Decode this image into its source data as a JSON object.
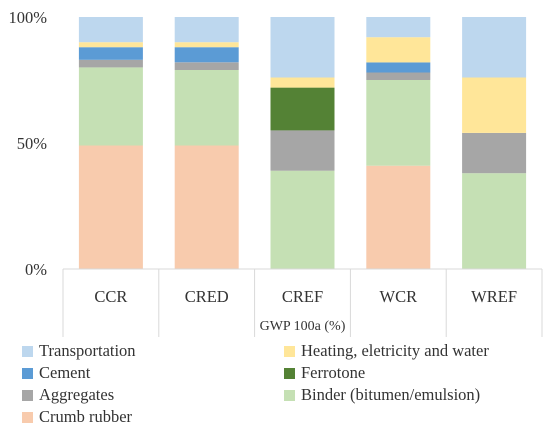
{
  "chart_data": {
    "type": "bar",
    "stacked": true,
    "categories": [
      "CCR",
      "CRED",
      "CREF",
      "WCR",
      "WREF"
    ],
    "xlabel": "GWP 100a (%)",
    "ylabel": "",
    "ylim": [
      0,
      100
    ],
    "yticks": [
      "0%",
      "50%",
      "100%"
    ],
    "ytick_values": [
      0,
      50,
      100
    ],
    "grid": false,
    "legend_position": "bottom",
    "series": [
      {
        "name": "Crumb rubber",
        "color": "#f8cbad",
        "values": [
          49,
          49,
          0,
          41,
          0
        ]
      },
      {
        "name": "Binder (bitumen/emulsion)",
        "color": "#c5e0b4",
        "values": [
          31,
          30,
          39,
          34,
          38
        ]
      },
      {
        "name": "Aggregates",
        "color": "#a6a6a6",
        "values": [
          3,
          3,
          16,
          3,
          16
        ]
      },
      {
        "name": "Ferrotone",
        "color": "#548235",
        "values": [
          0,
          0,
          17,
          0,
          0
        ]
      },
      {
        "name": "Cement",
        "color": "#5b9bd5",
        "values": [
          5,
          6,
          0,
          4,
          0
        ]
      },
      {
        "name": "Heating, eletricity and water",
        "color": "#ffe699",
        "values": [
          2,
          2,
          4,
          10,
          22
        ]
      },
      {
        "name": "Transportation",
        "color": "#bdd7ee",
        "values": [
          10,
          10,
          24,
          8,
          24
        ]
      }
    ]
  },
  "legend_order": [
    "Transportation",
    "Heating, eletricity and water",
    "Cement",
    "Ferrotone",
    "Aggregates",
    "Binder (bitumen/emulsion)",
    "Crumb rubber"
  ]
}
